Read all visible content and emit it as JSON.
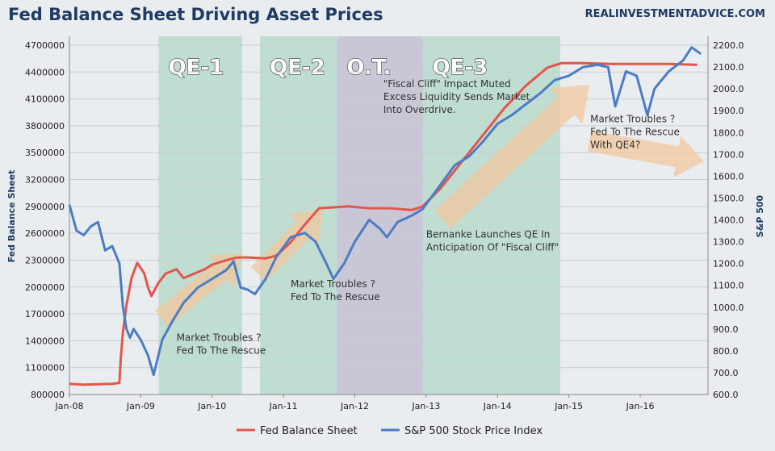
{
  "header": {
    "title": "Fed Balance Sheet Driving Asset Prices",
    "site": "REALINVESTMENTADVICE.COM"
  },
  "chart_data": {
    "type": "line",
    "title": "Fed Balance Sheet Driving Asset Prices",
    "ylabel": "Fed Balance Sheet",
    "y2label": "S&P 500",
    "ylim": [
      800000,
      4700000
    ],
    "y2lim": [
      600,
      2200
    ],
    "xlim": [
      2008.0,
      2016.95
    ],
    "x_ticks": [
      "Jan-08",
      "Jan-09",
      "Jan-10",
      "Jan-11",
      "Jan-12",
      "Jan-13",
      "Jan-14",
      "Jan-15",
      "Jan-16"
    ],
    "y_ticks": [
      "800000",
      "1100000",
      "1400000",
      "1700000",
      "2000000",
      "2300000",
      "2600000",
      "2900000",
      "3200000",
      "3500000",
      "3800000",
      "4100000",
      "4400000",
      "4700000"
    ],
    "y2_ticks": [
      "600.0",
      "700.0",
      "800.0",
      "900.0",
      "1000.0",
      "1100.0",
      "1200.0",
      "1300.0",
      "1400.0",
      "1500.0",
      "1600.0",
      "1700.0",
      "1800.0",
      "1900.0",
      "2000.0",
      "2100.0",
      "2200.0"
    ],
    "shaded_periods": [
      {
        "label": "QE-1",
        "start": 2009.25,
        "end": 2010.42,
        "color": "#b7d9cb"
      },
      {
        "label": "QE-2",
        "start": 2010.67,
        "end": 2011.75,
        "color": "#b7d9cb"
      },
      {
        "label": "O.T.",
        "start": 2011.75,
        "end": 2012.95,
        "color": "#c3bed1"
      },
      {
        "label": "QE-3",
        "start": 2012.95,
        "end": 2014.88,
        "color": "#b7d9cb"
      }
    ],
    "annotations": [
      {
        "lines": [
          "Market Troubles ?",
          "Fed To The Rescue"
        ],
        "x": 2009.5,
        "y": 1400000
      },
      {
        "lines": [
          "Market Troubles ?",
          "Fed To The Rescue"
        ],
        "x": 2011.1,
        "y": 2000000
      },
      {
        "lines": [
          "\"Fiscal Cliff\" Impact Muted",
          "Excess Liquidity Sends Market",
          "Into Overdrive."
        ],
        "x": 2012.4,
        "y": 4230000
      },
      {
        "lines": [
          "Bernanke Launches QE In",
          "Anticipation Of \"Fiscal Cliff\""
        ],
        "x": 2013.0,
        "y": 2550000
      },
      {
        "lines": [
          "Market Troubles ?",
          "Fed To The Rescue",
          "With QE4?"
        ],
        "x": 2015.3,
        "y": 3840000
      }
    ],
    "series": [
      {
        "name": "Fed Balance Sheet",
        "axis": "left",
        "color": "#e2564b",
        "points": [
          [
            2008.0,
            920000
          ],
          [
            2008.2,
            910000
          ],
          [
            2008.4,
            915000
          ],
          [
            2008.6,
            920000
          ],
          [
            2008.7,
            930000
          ],
          [
            2008.72,
            1200000
          ],
          [
            2008.75,
            1500000
          ],
          [
            2008.8,
            1800000
          ],
          [
            2008.87,
            2100000
          ],
          [
            2008.95,
            2270000
          ],
          [
            2009.05,
            2150000
          ],
          [
            2009.1,
            2000000
          ],
          [
            2009.15,
            1900000
          ],
          [
            2009.25,
            2050000
          ],
          [
            2009.35,
            2150000
          ],
          [
            2009.5,
            2200000
          ],
          [
            2009.6,
            2100000
          ],
          [
            2009.75,
            2150000
          ],
          [
            2009.9,
            2200000
          ],
          [
            2010.0,
            2250000
          ],
          [
            2010.2,
            2300000
          ],
          [
            2010.35,
            2330000
          ],
          [
            2010.5,
            2330000
          ],
          [
            2010.75,
            2320000
          ],
          [
            2010.9,
            2350000
          ],
          [
            2011.1,
            2500000
          ],
          [
            2011.3,
            2700000
          ],
          [
            2011.5,
            2880000
          ],
          [
            2011.7,
            2890000
          ],
          [
            2011.9,
            2900000
          ],
          [
            2012.2,
            2880000
          ],
          [
            2012.5,
            2880000
          ],
          [
            2012.8,
            2860000
          ],
          [
            2012.95,
            2900000
          ],
          [
            2013.2,
            3100000
          ],
          [
            2013.5,
            3400000
          ],
          [
            2013.8,
            3700000
          ],
          [
            2014.1,
            4000000
          ],
          [
            2014.4,
            4250000
          ],
          [
            2014.7,
            4450000
          ],
          [
            2014.9,
            4500000
          ],
          [
            2015.2,
            4500000
          ],
          [
            2015.6,
            4490000
          ],
          [
            2016.0,
            4490000
          ],
          [
            2016.4,
            4490000
          ],
          [
            2016.8,
            4480000
          ]
        ]
      },
      {
        "name": "S&P 500 Stock Price Index",
        "axis": "right",
        "color": "#4c7cc4",
        "points": [
          [
            2008.0,
            1470
          ],
          [
            2008.1,
            1350
          ],
          [
            2008.2,
            1330
          ],
          [
            2008.3,
            1370
          ],
          [
            2008.4,
            1390
          ],
          [
            2008.5,
            1260
          ],
          [
            2008.6,
            1280
          ],
          [
            2008.7,
            1200
          ],
          [
            2008.75,
            1000
          ],
          [
            2008.8,
            900
          ],
          [
            2008.85,
            860
          ],
          [
            2008.9,
            900
          ],
          [
            2009.0,
            850
          ],
          [
            2009.1,
            780
          ],
          [
            2009.18,
            690
          ],
          [
            2009.3,
            850
          ],
          [
            2009.45,
            940
          ],
          [
            2009.6,
            1020
          ],
          [
            2009.8,
            1090
          ],
          [
            2010.0,
            1130
          ],
          [
            2010.2,
            1170
          ],
          [
            2010.3,
            1210
          ],
          [
            2010.4,
            1090
          ],
          [
            2010.5,
            1080
          ],
          [
            2010.6,
            1060
          ],
          [
            2010.75,
            1130
          ],
          [
            2010.9,
            1230
          ],
          [
            2011.1,
            1320
          ],
          [
            2011.3,
            1340
          ],
          [
            2011.45,
            1300
          ],
          [
            2011.6,
            1200
          ],
          [
            2011.7,
            1130
          ],
          [
            2011.85,
            1200
          ],
          [
            2012.0,
            1300
          ],
          [
            2012.2,
            1400
          ],
          [
            2012.35,
            1360
          ],
          [
            2012.45,
            1320
          ],
          [
            2012.6,
            1390
          ],
          [
            2012.8,
            1420
          ],
          [
            2012.95,
            1450
          ],
          [
            2013.2,
            1560
          ],
          [
            2013.4,
            1650
          ],
          [
            2013.6,
            1690
          ],
          [
            2013.8,
            1760
          ],
          [
            2014.0,
            1840
          ],
          [
            2014.2,
            1880
          ],
          [
            2014.4,
            1930
          ],
          [
            2014.6,
            1980
          ],
          [
            2014.8,
            2040
          ],
          [
            2015.0,
            2060
          ],
          [
            2015.2,
            2100
          ],
          [
            2015.4,
            2110
          ],
          [
            2015.55,
            2100
          ],
          [
            2015.65,
            1920
          ],
          [
            2015.8,
            2080
          ],
          [
            2015.95,
            2060
          ],
          [
            2016.1,
            1880
          ],
          [
            2016.2,
            2000
          ],
          [
            2016.4,
            2080
          ],
          [
            2016.6,
            2130
          ],
          [
            2016.72,
            2190
          ],
          [
            2016.85,
            2160
          ]
        ]
      }
    ],
    "legend_position": "bottom",
    "grid": true
  }
}
